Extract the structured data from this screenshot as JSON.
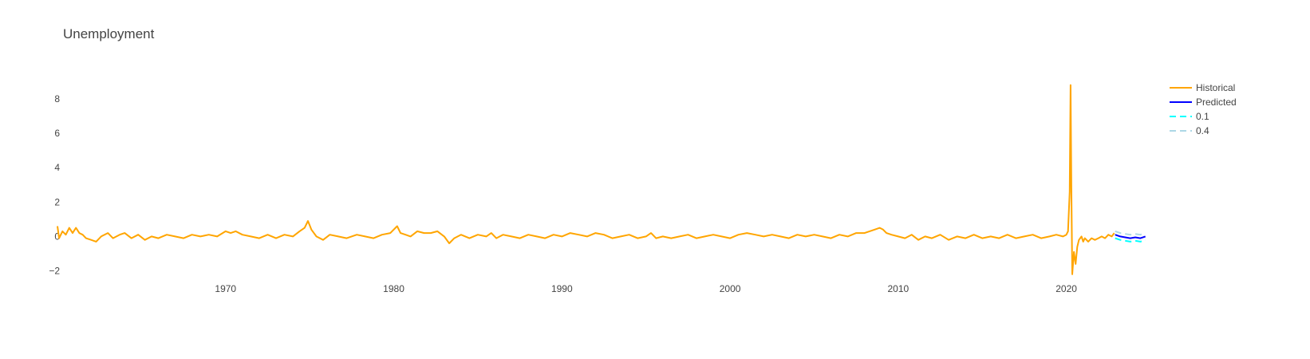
{
  "chart_data": {
    "type": "line",
    "title": "Unemployment",
    "xlabel": "",
    "ylabel": "",
    "xlim": [
      1960.0,
      2025.0
    ],
    "ylim": [
      -2.3,
      9.2
    ],
    "x_ticks": [
      1970,
      1980,
      1990,
      2000,
      2010,
      2020
    ],
    "x_tick_labels": [
      "1970",
      "1980",
      "1990",
      "2000",
      "2010",
      "2020"
    ],
    "y_ticks": [
      -2,
      0,
      2,
      4,
      6,
      8
    ],
    "y_tick_labels": [
      "−2",
      "0",
      "2",
      "4",
      "6",
      "8"
    ],
    "legend_position": "top-right",
    "series": [
      {
        "name": "Historical",
        "color": "#FFA500",
        "dash": "solid",
        "x": [
          1960.0,
          1960.1,
          1960.3,
          1960.5,
          1960.7,
          1960.9,
          1961.1,
          1961.3,
          1961.5,
          1961.7,
          1962.0,
          1962.3,
          1962.6,
          1963.0,
          1963.3,
          1963.7,
          1964.0,
          1964.4,
          1964.8,
          1965.2,
          1965.6,
          1966.0,
          1966.5,
          1967.0,
          1967.5,
          1968.0,
          1968.5,
          1969.0,
          1969.5,
          1970.0,
          1970.3,
          1970.6,
          1971.0,
          1971.5,
          1972.0,
          1972.5,
          1973.0,
          1973.5,
          1974.0,
          1974.4,
          1974.7,
          1974.9,
          1975.1,
          1975.4,
          1975.8,
          1976.2,
          1976.7,
          1977.2,
          1977.8,
          1978.3,
          1978.8,
          1979.3,
          1979.8,
          1980.2,
          1980.4,
          1980.7,
          1981.0,
          1981.4,
          1981.8,
          1982.2,
          1982.6,
          1983.0,
          1983.3,
          1983.6,
          1984.0,
          1984.5,
          1985.0,
          1985.5,
          1985.8,
          1986.1,
          1986.5,
          1987.0,
          1987.5,
          1988.0,
          1988.5,
          1989.0,
          1989.5,
          1990.0,
          1990.5,
          1991.0,
          1991.5,
          1992.0,
          1992.5,
          1993.0,
          1993.5,
          1994.0,
          1994.5,
          1995.0,
          1995.3,
          1995.6,
          1996.0,
          1996.5,
          1997.0,
          1997.5,
          1998.0,
          1998.5,
          1999.0,
          1999.5,
          2000.0,
          2000.5,
          2001.0,
          2001.5,
          2002.0,
          2002.5,
          2003.0,
          2003.5,
          2004.0,
          2004.5,
          2005.0,
          2005.5,
          2006.0,
          2006.5,
          2007.0,
          2007.5,
          2008.0,
          2008.3,
          2008.6,
          2008.9,
          2009.1,
          2009.3,
          2009.6,
          2010.0,
          2010.4,
          2010.8,
          2011.2,
          2011.6,
          2012.0,
          2012.5,
          2013.0,
          2013.5,
          2014.0,
          2014.5,
          2015.0,
          2015.5,
          2016.0,
          2016.5,
          2017.0,
          2017.5,
          2018.0,
          2018.5,
          2019.0,
          2019.4,
          2019.8,
          2020.0,
          2020.1,
          2020.2,
          2020.25,
          2020.3,
          2020.35,
          2020.45,
          2020.55,
          2020.65,
          2020.75,
          2020.9,
          2021.0,
          2021.1,
          2021.3,
          2021.5,
          2021.7,
          2021.9,
          2022.1,
          2022.3,
          2022.5,
          2022.7,
          2022.85
        ],
        "y": [
          0.6,
          -0.1,
          0.3,
          0.1,
          0.5,
          0.2,
          0.5,
          0.2,
          0.1,
          -0.1,
          -0.2,
          -0.3,
          0.0,
          0.2,
          -0.1,
          0.1,
          0.2,
          -0.1,
          0.1,
          -0.2,
          0.0,
          -0.1,
          0.1,
          0.0,
          -0.1,
          0.1,
          0.0,
          0.1,
          0.0,
          0.3,
          0.2,
          0.3,
          0.1,
          0.0,
          -0.1,
          0.1,
          -0.1,
          0.1,
          0.0,
          0.3,
          0.5,
          0.9,
          0.4,
          0.0,
          -0.2,
          0.1,
          0.0,
          -0.1,
          0.1,
          0.0,
          -0.1,
          0.1,
          0.2,
          0.6,
          0.2,
          0.1,
          0.0,
          0.3,
          0.2,
          0.2,
          0.3,
          0.0,
          -0.4,
          -0.1,
          0.1,
          -0.1,
          0.1,
          0.0,
          0.2,
          -0.1,
          0.1,
          0.0,
          -0.1,
          0.1,
          0.0,
          -0.1,
          0.1,
          0.0,
          0.2,
          0.1,
          0.0,
          0.2,
          0.1,
          -0.1,
          0.0,
          0.1,
          -0.1,
          0.0,
          0.2,
          -0.1,
          0.0,
          -0.1,
          0.0,
          0.1,
          -0.1,
          0.0,
          0.1,
          0.0,
          -0.1,
          0.1,
          0.2,
          0.1,
          0.0,
          0.1,
          0.0,
          -0.1,
          0.1,
          0.0,
          0.1,
          0.0,
          -0.1,
          0.1,
          0.0,
          0.2,
          0.2,
          0.3,
          0.4,
          0.5,
          0.4,
          0.2,
          0.1,
          0.0,
          -0.1,
          0.1,
          -0.2,
          0.0,
          -0.1,
          0.1,
          -0.2,
          0.0,
          -0.1,
          0.1,
          -0.1,
          0.0,
          -0.1,
          0.1,
          -0.1,
          0.0,
          0.1,
          -0.1,
          0.0,
          0.1,
          0.0,
          0.1,
          0.3,
          2.6,
          8.8,
          2.8,
          -2.2,
          -0.9,
          -1.6,
          -0.6,
          -0.2,
          0.0,
          -0.3,
          -0.1,
          -0.3,
          -0.1,
          -0.2,
          -0.1,
          0.0,
          -0.1,
          0.1,
          0.0,
          0.2
        ]
      },
      {
        "name": "Predicted",
        "color": "#0000FF",
        "dash": "solid",
        "x": [
          2022.9,
          2023.2,
          2023.5,
          2023.8,
          2024.1,
          2024.4,
          2024.7
        ],
        "y": [
          0.1,
          0.0,
          -0.05,
          -0.1,
          -0.05,
          -0.1,
          0.0
        ]
      },
      {
        "name": "0.1",
        "color": "#00FFFF",
        "dash": "dash",
        "x": [
          2022.9,
          2023.2,
          2023.5,
          2023.8,
          2024.1,
          2024.4,
          2024.7
        ],
        "y": [
          -0.1,
          -0.2,
          -0.25,
          -0.3,
          -0.25,
          -0.3,
          -0.2
        ]
      },
      {
        "name": "0.4",
        "color": "#ADD8E6",
        "dash": "dash",
        "x": [
          2022.9,
          2023.2,
          2023.5,
          2023.8,
          2024.1,
          2024.4,
          2024.7
        ],
        "y": [
          0.3,
          0.2,
          0.15,
          0.1,
          0.15,
          0.1,
          0.2
        ]
      }
    ]
  }
}
